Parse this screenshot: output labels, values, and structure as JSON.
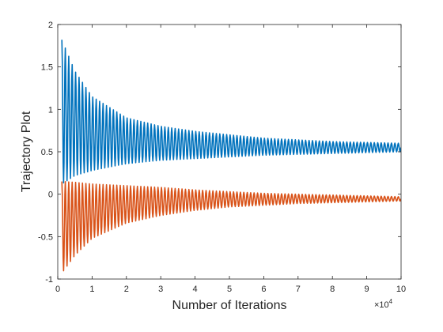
{
  "chart_data": {
    "type": "line",
    "title": "",
    "xlabel": "Number of Iterations",
    "ylabel": "Trajectory Plot",
    "x_exponent_label": "×10",
    "x_exponent_power": "4",
    "xlim": [
      0,
      10
    ],
    "ylim": [
      -1,
      2
    ],
    "x_ticks": [
      0,
      1,
      2,
      3,
      4,
      5,
      6,
      7,
      8,
      9,
      10
    ],
    "x_tick_labels": [
      "0",
      "1",
      "2",
      "3",
      "4",
      "5",
      "6",
      "7",
      "8",
      "9",
      "10"
    ],
    "y_ticks": [
      -1,
      -0.5,
      0,
      0.5,
      1,
      1.5,
      2
    ],
    "y_tick_labels": [
      "-1",
      "-0.5",
      "0",
      "0.5",
      "1",
      "1.5",
      "2"
    ],
    "grid": false,
    "series": [
      {
        "color": "#0072BD",
        "center": 0.55,
        "oscillation_period": 1000,
        "envelope": [
          {
            "x": 0.12,
            "upper": 1.82,
            "lower": 0.12
          },
          {
            "x": 0.5,
            "upper": 1.45,
            "lower": 0.22
          },
          {
            "x": 1,
            "upper": 1.15,
            "lower": 0.28
          },
          {
            "x": 2,
            "upper": 0.9,
            "lower": 0.36
          },
          {
            "x": 3,
            "upper": 0.8,
            "lower": 0.4
          },
          {
            "x": 4,
            "upper": 0.74,
            "lower": 0.42
          },
          {
            "x": 5,
            "upper": 0.7,
            "lower": 0.44
          },
          {
            "x": 6,
            "upper": 0.66,
            "lower": 0.46
          },
          {
            "x": 7,
            "upper": 0.64,
            "lower": 0.47
          },
          {
            "x": 8,
            "upper": 0.62,
            "lower": 0.48
          },
          {
            "x": 9,
            "upper": 0.61,
            "lower": 0.49
          },
          {
            "x": 10,
            "upper": 0.6,
            "lower": 0.5
          }
        ]
      },
      {
        "color": "#D95319",
        "center": -0.05,
        "oscillation_period": 1000,
        "envelope": [
          {
            "x": 0.12,
            "upper": 0.15,
            "lower": -0.93
          },
          {
            "x": 0.5,
            "upper": 0.14,
            "lower": -0.72
          },
          {
            "x": 1,
            "upper": 0.12,
            "lower": -0.52
          },
          {
            "x": 2,
            "upper": 0.1,
            "lower": -0.34
          },
          {
            "x": 3,
            "upper": 0.08,
            "lower": -0.25
          },
          {
            "x": 4,
            "upper": 0.05,
            "lower": -0.19
          },
          {
            "x": 5,
            "upper": 0.03,
            "lower": -0.15
          },
          {
            "x": 6,
            "upper": 0.01,
            "lower": -0.13
          },
          {
            "x": 7,
            "upper": 0.0,
            "lower": -0.11
          },
          {
            "x": 8,
            "upper": -0.01,
            "lower": -0.1
          },
          {
            "x": 9,
            "upper": -0.02,
            "lower": -0.09
          },
          {
            "x": 10,
            "upper": -0.03,
            "lower": -0.08
          }
        ]
      }
    ]
  }
}
